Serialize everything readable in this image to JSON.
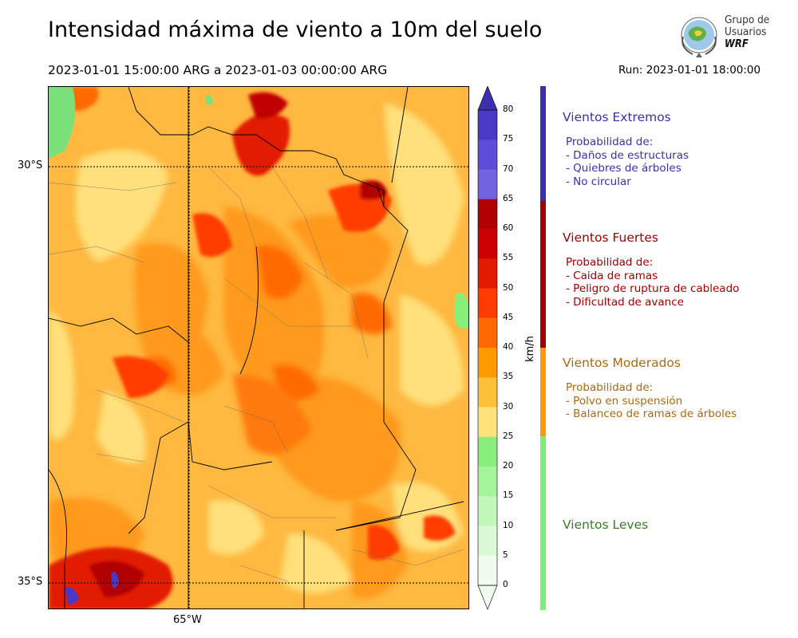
{
  "title": "Intensidad máxima de viento a 10m del suelo",
  "period": "2023-01-01 15:00:00 ARG  a  2023-01-03 00:00:00 ARG",
  "run": "Run: 2023-01-01 18:00:00",
  "logo": {
    "line1": "Grupo de",
    "line2": "Usuarios",
    "line3": "WRF"
  },
  "axes": {
    "lat_labels": [
      "30°S",
      "35°S"
    ],
    "lon_labels": [
      "65°W"
    ]
  },
  "colorbar": {
    "unit": "km/h",
    "ticks": [
      "80",
      "75",
      "70",
      "65",
      "60",
      "55",
      "50",
      "45",
      "40",
      "35",
      "30",
      "25",
      "20",
      "15",
      "10",
      "5",
      "0"
    ],
    "colors": [
      "#3b2fae",
      "#4a39c4",
      "#5c4ed6",
      "#7263e0",
      "#b00000",
      "#cc0000",
      "#e21a00",
      "#ff3c00",
      "#ff6a00",
      "#ff9a00",
      "#ffc03a",
      "#ffe27a",
      "#88f07a",
      "#a4f59a",
      "#c0f9b8",
      "#daf9d4",
      "#f0fdee"
    ]
  },
  "categories": [
    {
      "title": "Vientos Extremos",
      "desc": [
        "Probabilidad de:",
        "- Daños de estructuras",
        "- Quiebres de árboles",
        "- No circular"
      ],
      "color": "#3b2fae"
    },
    {
      "title": "Vientos Fuertes",
      "desc": [
        "Probabilidad de:",
        "- Caida de ramas",
        "- Peligro de ruptura de cableado",
        "- Dificultad de avance"
      ],
      "color": "#a00000"
    },
    {
      "title": "Vientos Moderados",
      "desc": [
        "Probabilidad de:",
        "- Polvo en suspensión",
        "- Balanceo de ramas de árboles"
      ],
      "color": "#a86a10"
    },
    {
      "title": "Vientos Leves",
      "desc": [],
      "color": "#3a7a2a"
    }
  ],
  "category_bar_colors": [
    "#3b2fae",
    "#a00000",
    "#ff9a00",
    "#7cf07c"
  ]
}
